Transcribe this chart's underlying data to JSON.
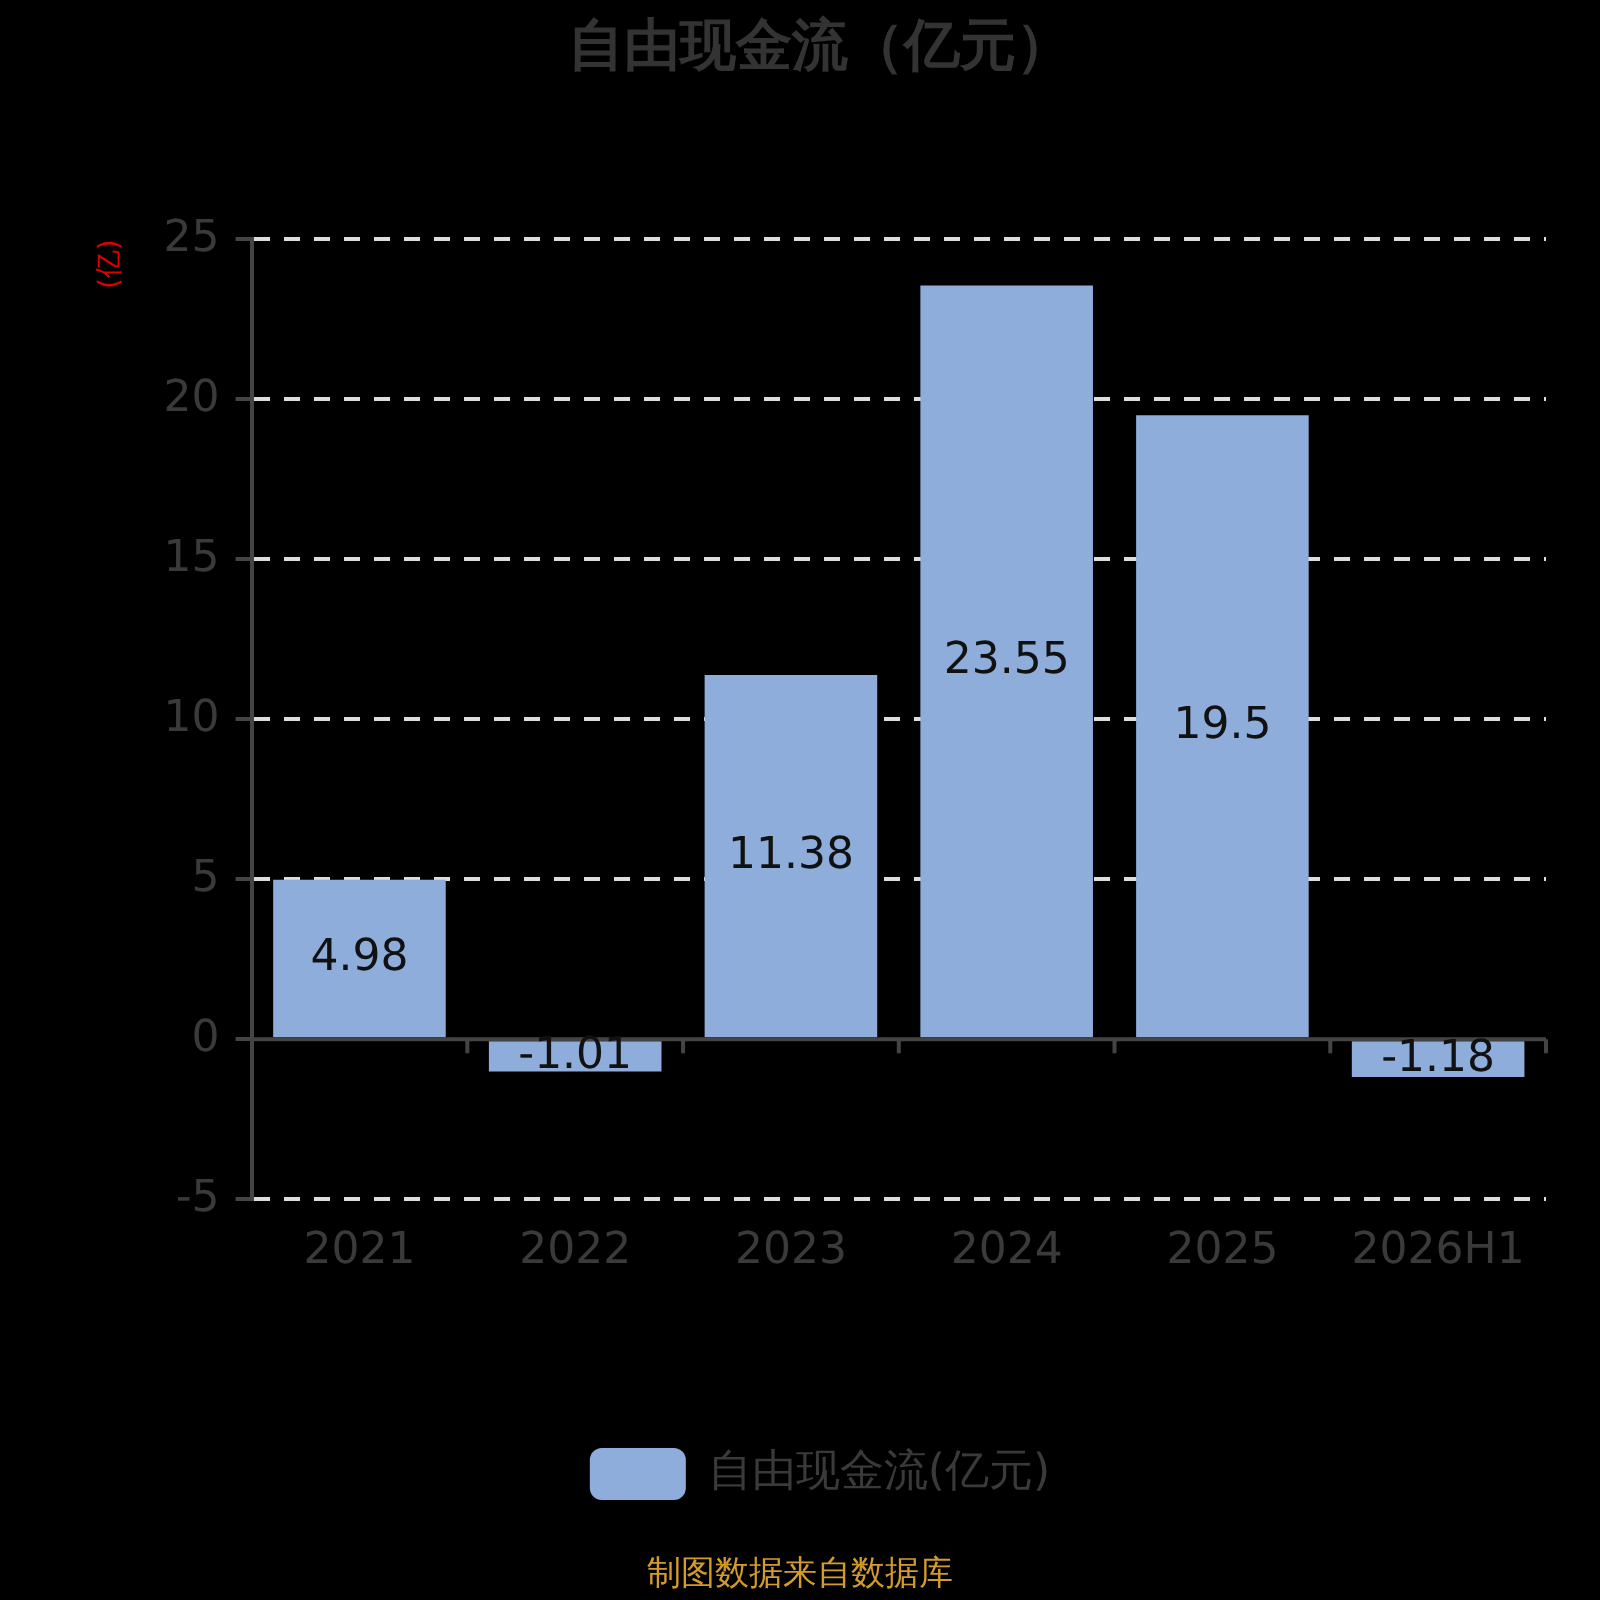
{
  "chart_data": {
    "type": "bar",
    "title": "自由现金流（亿元）",
    "ylabel": "(亿)",
    "categories": [
      "2021",
      "2022",
      "2023",
      "2024",
      "2025",
      "2026H1"
    ],
    "series": [
      {
        "name": "自由现金流(亿元)",
        "color": "#8eaddb",
        "values": [
          4.98,
          -1.01,
          11.38,
          23.55,
          19.5,
          -1.18
        ]
      }
    ],
    "ylim": [
      -5,
      25
    ],
    "yticks": [
      -5,
      0,
      5,
      10,
      15,
      20,
      25
    ],
    "grid": "y",
    "legend": "bottom",
    "data_labels": true,
    "annotations": [
      "制图数据来自数据库"
    ]
  }
}
